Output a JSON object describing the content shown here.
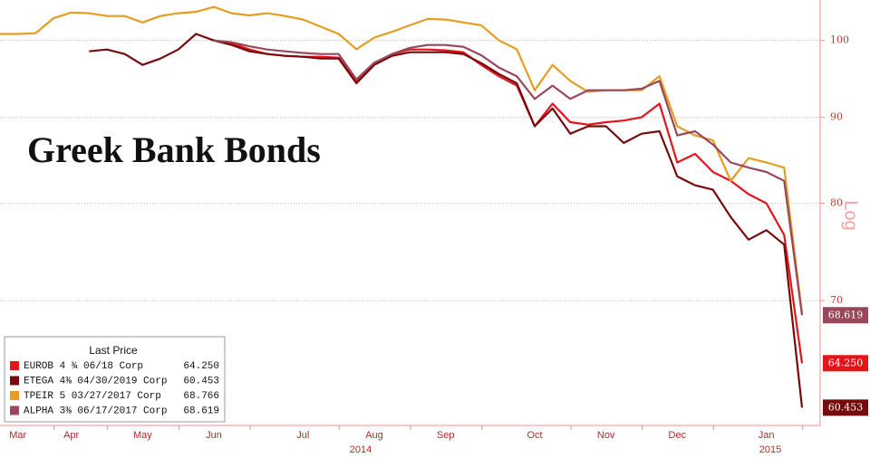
{
  "chart_data": {
    "type": "line",
    "title": "Greek Bank Bonds",
    "y_axis_label": "Log",
    "log_scale": true,
    "grid": true,
    "legend_title": "Last Price",
    "legend_position": "bottom-left",
    "x": [
      null,
      "Mar",
      null,
      null,
      "Apr",
      null,
      null,
      null,
      "May",
      null,
      null,
      null,
      "Jun",
      null,
      null,
      null,
      null,
      "Jul",
      null,
      null,
      null,
      "Aug",
      null,
      null,
      null,
      "Sep",
      null,
      null,
      null,
      null,
      "Oct",
      null,
      null,
      null,
      "Nov",
      null,
      null,
      null,
      "Dec",
      null,
      null,
      null,
      null,
      "Jan",
      null,
      null
    ],
    "x_axis_years": [
      "2014",
      "2015"
    ],
    "ylim": [
      59,
      105.7
    ],
    "yticks": [
      70,
      80,
      90,
      100
    ],
    "series": [
      {
        "name": "EUROB 4 ¾ 06/18 Corp",
        "color": "#e4141b",
        "last_price_label": "64.250",
        "end_tag": true,
        "values": [
          null,
          null,
          null,
          null,
          null,
          null,
          null,
          null,
          null,
          null,
          null,
          null,
          100.0,
          99.63,
          98.77,
          98.16,
          97.91,
          97.79,
          97.79,
          97.67,
          94.6,
          96.95,
          98.16,
          98.77,
          98.77,
          98.65,
          98.4,
          96.7,
          95.2,
          94.0,
          88.9,
          91.7,
          89.4,
          89.1,
          89.4,
          89.6,
          90.0,
          91.7,
          84.6,
          85.6,
          83.5,
          82.5,
          81.0,
          80.0,
          76.6,
          64.25
        ]
      },
      {
        "name": "ETEGA 4⅜ 04/30/2019 Corp",
        "color": "#760a0c",
        "last_price_label": "60.453",
        "end_tag": true,
        "values": [
          null,
          null,
          null,
          null,
          null,
          98.52,
          98.77,
          98.16,
          96.7,
          97.55,
          98.77,
          100.9,
          100.0,
          99.38,
          98.52,
          98.16,
          97.91,
          97.79,
          97.55,
          97.55,
          94.3,
          96.7,
          97.91,
          98.4,
          98.4,
          98.4,
          98.16,
          96.95,
          95.5,
          94.3,
          88.9,
          91.1,
          88.0,
          88.9,
          88.9,
          86.9,
          88.0,
          88.3,
          83.0,
          82.0,
          81.5,
          78.5,
          76.1,
          77.1,
          75.6,
          60.453
        ]
      },
      {
        "name": "TPEIR 5 03/27/2017 Corp",
        "color": "#e59c22",
        "last_price_label": "68.766",
        "end_tag": false,
        "values": [
          100.9,
          100.9,
          101.0,
          103.1,
          103.9,
          103.8,
          103.4,
          103.4,
          102.5,
          103.4,
          103.8,
          104.0,
          104.7,
          103.8,
          103.5,
          103.8,
          103.4,
          102.9,
          101.9,
          100.9,
          98.8,
          100.4,
          101.2,
          102.1,
          103.0,
          102.9,
          102.5,
          102.1,
          100.0,
          98.8,
          93.4,
          96.7,
          94.6,
          93.2,
          93.4,
          93.4,
          93.4,
          95.2,
          88.9,
          87.8,
          87.2,
          82.5,
          85.1,
          84.6,
          84.0,
          68.766
        ]
      },
      {
        "name": "ALPHA 3⅜ 06/17/2017 Corp",
        "color": "#97485a",
        "last_price_label": "68.619",
        "end_tag": true,
        "values": [
          null,
          null,
          null,
          null,
          null,
          null,
          null,
          null,
          null,
          null,
          null,
          null,
          100.0,
          99.75,
          99.2,
          98.77,
          98.52,
          98.3,
          98.16,
          98.16,
          94.8,
          97.0,
          98.16,
          99.0,
          99.38,
          99.38,
          99.13,
          98.0,
          96.35,
          95.2,
          92.3,
          94.0,
          92.3,
          93.4,
          93.4,
          93.4,
          93.6,
          94.6,
          87.8,
          88.3,
          86.7,
          84.6,
          84.0,
          83.5,
          82.5,
          68.619
        ]
      }
    ]
  }
}
